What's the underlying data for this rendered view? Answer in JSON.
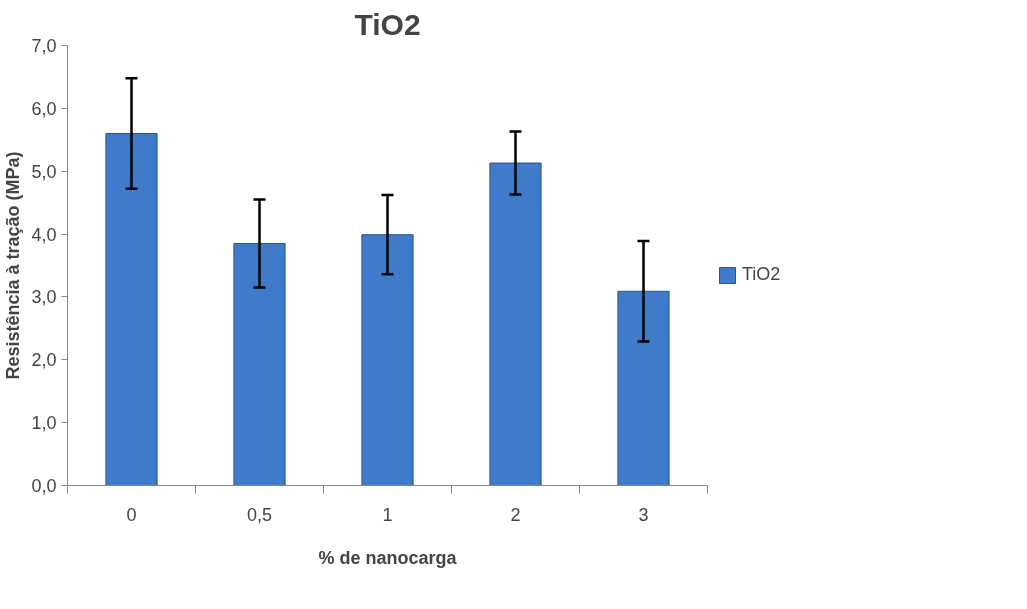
{
  "chart_data": {
    "type": "bar",
    "title": "TiO2",
    "xlabel": "% de nanocarga",
    "ylabel": "Resistência à tração (MPa)",
    "categories": [
      "0",
      "0,5",
      "1",
      "2",
      "3"
    ],
    "series": [
      {
        "name": "TiO2",
        "color": "#3f7acb",
        "values": [
          5.6,
          3.85,
          3.99,
          5.13,
          3.09
        ],
        "errors": [
          0.88,
          0.7,
          0.63,
          0.5,
          0.8
        ]
      }
    ],
    "ylim": [
      0,
      7
    ],
    "yticks": [
      {
        "value": 0,
        "label": "0,0"
      },
      {
        "value": 1,
        "label": "1,0"
      },
      {
        "value": 2,
        "label": "2,0"
      },
      {
        "value": 3,
        "label": "3,0"
      },
      {
        "value": 4,
        "label": "4,0"
      },
      {
        "value": 5,
        "label": "5,0"
      },
      {
        "value": 6,
        "label": "6,0"
      },
      {
        "value": 7,
        "label": "7,0"
      }
    ],
    "grid": false,
    "legend": "right"
  }
}
